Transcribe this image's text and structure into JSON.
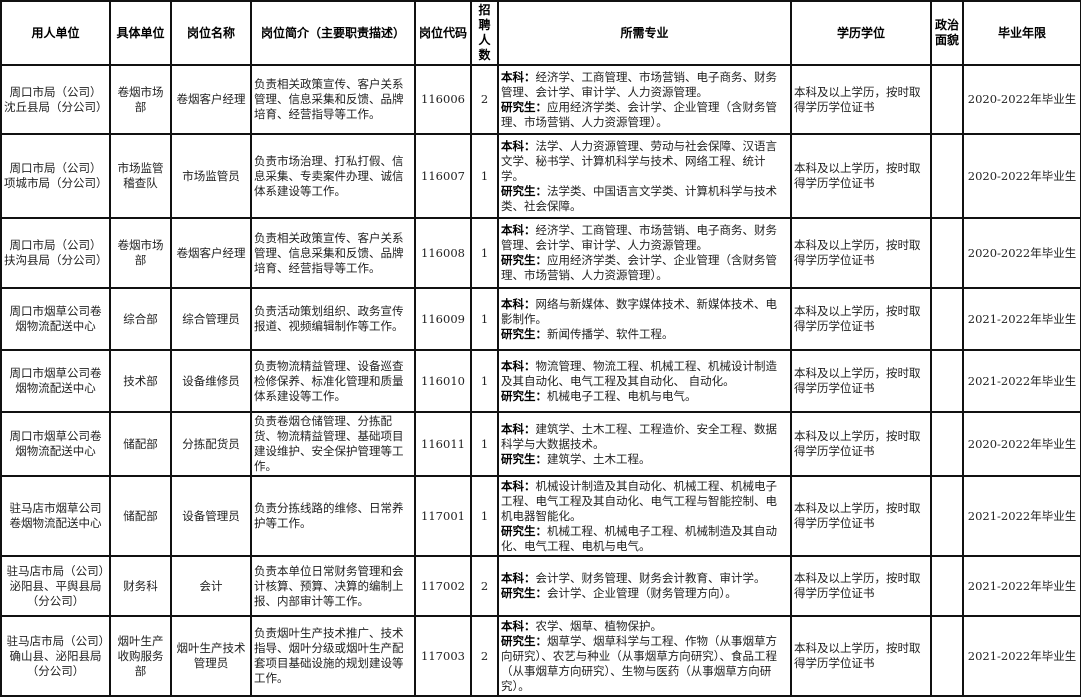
{
  "headers": [
    "用人单位",
    "具体单位",
    "岗位名称",
    "岗位简介（主要职责描述）",
    "岗位代码",
    "招聘人数",
    "所需专业",
    "学历学位",
    "政治面貌",
    "毕业年限"
  ],
  "rows": [
    {
      "employer": "周口市局（公司）沈丘县局（分公司）",
      "unit": "卷烟市场部",
      "position": "卷烟客户经理",
      "description": "负责相关政策宣传、客户关系管理、信息采集和反馈、品牌培育、经营指导等工作。",
      "code": "116006",
      "count": "2",
      "ug_label": "本科：",
      "ug": "经济学、工商管理、市场营销、电子商务、财务管理、会计学、审计学、人力资源管理。",
      "pg_label": "研究生：",
      "pg": "应用经济学类、会计学、企业管理（含财务管理、市场营销、人力资源管理）。",
      "degree": "本科及以上学历，按时取得学历学位证书",
      "political": "",
      "grad": "2020-2022年毕业生"
    },
    {
      "employer": "周口市局（公司）项城市局（分公司）",
      "unit": "市场监管稽查队",
      "position": "市场监管员",
      "description": "负责市场治理、打私打假、信息采集、专卖案件办理、诚信体系建设等工作。",
      "code": "116007",
      "count": "1",
      "ug_label": "本科：",
      "ug": "法学、人力资源管理、劳动与社会保障、汉语言文学、秘书学、计算机科学与技术、网络工程、统计学。",
      "pg_label": "研究生：",
      "pg": "法学类、中国语言文学类、计算机科学与技术类、社会保障。",
      "degree": "本科及以上学历，按时取得学历学位证书",
      "political": "",
      "grad": "2020-2022年毕业生"
    },
    {
      "employer": "周口市局（公司）扶沟县局（分公司）",
      "unit": "卷烟市场部",
      "position": "卷烟客户经理",
      "description": "负责相关政策宣传、客户关系管理、信息采集和反馈、品牌培育、经营指导等工作。",
      "code": "116008",
      "count": "1",
      "ug_label": "本科：",
      "ug": "经济学、工商管理、市场营销、电子商务、财务管理、会计学、审计学、人力资源管理。",
      "pg_label": "研究生：",
      "pg": "应用经济学类、会计学、企业管理（含财务管理、市场营销、人力资源管理）。",
      "degree": "本科及以上学历，按时取得学历学位证书",
      "political": "",
      "grad": "2020-2022年毕业生"
    },
    {
      "employer": "周口市烟草公司卷烟物流配送中心",
      "unit": "综合部",
      "position": "综合管理员",
      "description": "负责活动策划组织、政务宣传报道、视频编辑制作等工作。",
      "code": "116009",
      "count": "1",
      "ug_label": "本科：",
      "ug": "网络与新媒体、数字媒体技术、新媒体技术、电影制作。",
      "pg_label": "研究生：",
      "pg": "新闻传播学、软件工程。",
      "degree": "本科及以上学历，按时取得学历学位证书",
      "political": "",
      "grad": "2021-2022年毕业生"
    },
    {
      "employer": "周口市烟草公司卷烟物流配送中心",
      "unit": "技术部",
      "position": "设备维修员",
      "description": "负责物流精益管理、设备巡查检修保养、标准化管理和质量体系建设等工作。",
      "code": "116010",
      "count": "1",
      "ug_label": "本科：",
      "ug": "物流管理、物流工程、机械工程、机械设计制造及其自动化、电气工程及其自动化、 自动化。",
      "pg_label": "研究生：",
      "pg": "机械电子工程、电机与电气。",
      "degree": "本科及以上学历，按时取得学历学位证书",
      "political": "",
      "grad": "2021-2022年毕业生"
    },
    {
      "employer": "周口市烟草公司卷烟物流配送中心",
      "unit": "储配部",
      "position": "分拣配货员",
      "description": "负责卷烟仓储管理、分拣配货、物流精益管理、基础项目建设维护、安全保护管理等工作。",
      "code": "116011",
      "count": "1",
      "ug_label": "本科：",
      "ug": "建筑学、土木工程、工程造价、安全工程、数据科学与大数据技术。",
      "pg_label": "研究生：",
      "pg": "建筑学、土木工程。",
      "degree": "本科及以上学历，按时取得学历学位证书",
      "political": "",
      "grad": "2020-2022年毕业生"
    },
    {
      "employer": "驻马店市烟草公司卷烟物流配送中心",
      "unit": "储配部",
      "position": "设备管理员",
      "description": "负责分拣线路的维修、日常养护等工作。",
      "code": "117001",
      "count": "1",
      "ug_label": "本科：",
      "ug": "机械设计制造及其自动化、机械工程、机械电子工程、电气工程及其自动化、电气工程与智能控制、电机电器智能化。",
      "pg_label": "研究生：",
      "pg": "机械工程、机械电子工程、机械制造及其自动化、电气工程、电机与电气。",
      "degree": "本科及以上学历，按时取得学历学位证书",
      "political": "",
      "grad": "2021-2022年毕业生"
    },
    {
      "employer": "驻马店市局（公司）泌阳县、平舆县局（分公司）",
      "unit": "财务科",
      "position": "会计",
      "description": "负责本单位日常财务管理和会计核算、预算、决算的编制上报、内部审计等工作。",
      "code": "117002",
      "count": "2",
      "ug_label": "本科：",
      "ug": "会计学、财务管理、财务会计教育、审计学。",
      "pg_label": "研究生：",
      "pg": "会计学、企业管理（财务管理方向）。",
      "degree": "本科及以上学历，按时取得学历学位证书",
      "political": "",
      "grad": "2021-2022年毕业生"
    },
    {
      "employer": "驻马店市局（公司）确山县、泌阳县局（分公司）",
      "unit": "烟叶生产收购服务部",
      "position": "烟叶生产技术管理员",
      "description": "负责烟叶生产技术推广、技术指导、烟叶分级或烟叶生产配套项目基础设施的规划建设等工作。",
      "code": "117003",
      "count": "2",
      "ug_label": "本科：",
      "ug": "农学、烟草、植物保护。",
      "pg_label": "研究生：",
      "pg": "烟草学、烟草科学与工程、作物（从事烟草方向研究）、农艺与种业（从事烟草方向研究）、食品工程（从事烟草方向研究）、生物与医药（从事烟草方向研究）。",
      "degree": "本科及以上学历，按时取得学历学位证书",
      "political": "",
      "grad": "2021-2022年毕业生"
    }
  ]
}
